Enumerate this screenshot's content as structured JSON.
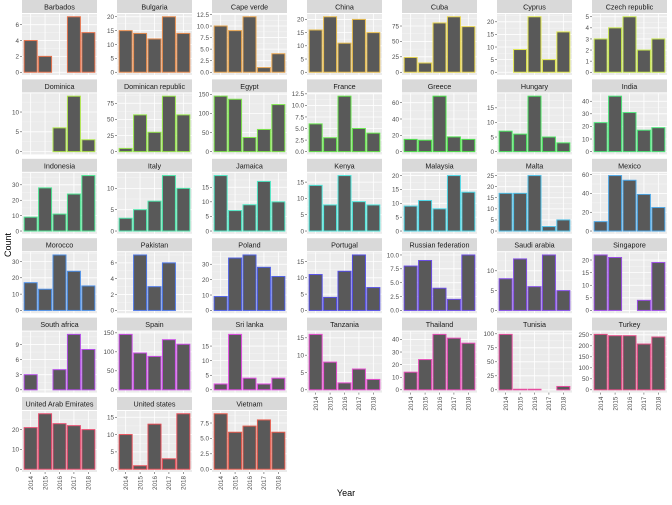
{
  "chart_data": {
    "type": "bar",
    "title": "",
    "xlabel": "Year",
    "ylabel": "Count",
    "categories": [
      "2014",
      "2015",
      "2016",
      "2017",
      "2018"
    ],
    "bar_fill": "#595959",
    "panel_bg": "#ebebeb",
    "strip_bg": "#d9d9d9",
    "facets": [
      {
        "name": "Barbados",
        "values": [
          4,
          2,
          0,
          7,
          5
        ],
        "ticks": [
          "0",
          "2",
          "4",
          "6"
        ]
      },
      {
        "name": "Bulgaria",
        "values": [
          15,
          14,
          12,
          20,
          14
        ],
        "ticks": [
          "0",
          "5",
          "10",
          "15",
          "20"
        ]
      },
      {
        "name": "Cape verde",
        "values": [
          10,
          9,
          12,
          1,
          4
        ],
        "ticks": [
          "0.0",
          "2.5",
          "5.0",
          "7.5",
          "10.0",
          "12.5"
        ]
      },
      {
        "name": "China",
        "values": [
          16,
          21,
          11,
          20,
          15
        ],
        "ticks": [
          "0",
          "5",
          "10",
          "15",
          "20"
        ]
      },
      {
        "name": "Cuba",
        "values": [
          24,
          15,
          80,
          90,
          74
        ],
        "ticks": [
          "0",
          "25",
          "50",
          "75"
        ]
      },
      {
        "name": "Cyprus",
        "values": [
          0,
          9,
          22,
          5,
          16
        ],
        "ticks": [
          "0",
          "5",
          "10",
          "15",
          "20"
        ]
      },
      {
        "name": "Czech republic",
        "values": [
          3,
          4,
          5,
          2,
          3
        ],
        "ticks": [
          "0",
          "1",
          "2",
          "3",
          "4",
          "5"
        ]
      },
      {
        "name": "Dominica",
        "values": [
          0,
          0,
          6,
          14,
          3
        ],
        "ticks": [
          "0",
          "5",
          "10"
        ]
      },
      {
        "name": "Dominican republic",
        "values": [
          5,
          57,
          30,
          86,
          57
        ],
        "ticks": [
          "0",
          "25",
          "50",
          "75"
        ]
      },
      {
        "name": "Egypt",
        "values": [
          145,
          137,
          37,
          58,
          123
        ],
        "ticks": [
          "0",
          "50",
          "100",
          "150"
        ]
      },
      {
        "name": "France",
        "values": [
          6,
          3,
          12,
          5,
          4
        ],
        "ticks": [
          "0.0",
          "2.5",
          "5.0",
          "7.5",
          "10.0",
          "12.5"
        ]
      },
      {
        "name": "Greece",
        "values": [
          15,
          14,
          68,
          18,
          15
        ],
        "ticks": [
          "0",
          "20",
          "40",
          "60"
        ]
      },
      {
        "name": "Hungary",
        "values": [
          7,
          6,
          19,
          5,
          3
        ],
        "ticks": [
          "0",
          "5",
          "10",
          "15"
        ]
      },
      {
        "name": "India",
        "values": [
          23,
          44,
          31,
          17,
          19
        ],
        "ticks": [
          "0",
          "10",
          "20",
          "30",
          "40"
        ]
      },
      {
        "name": "Indonesia",
        "values": [
          9,
          28,
          11,
          24,
          36
        ],
        "ticks": [
          "0",
          "10",
          "20",
          "30"
        ]
      },
      {
        "name": "Italy",
        "values": [
          3,
          5,
          7,
          13,
          10
        ],
        "ticks": [
          "0",
          "5",
          "10"
        ]
      },
      {
        "name": "Jamaica",
        "values": [
          19,
          7,
          9,
          17,
          10
        ],
        "ticks": [
          "0",
          "5",
          "10",
          "15"
        ]
      },
      {
        "name": "Kenya",
        "values": [
          14,
          8,
          17,
          9,
          8
        ],
        "ticks": [
          "0",
          "5",
          "10",
          "15"
        ]
      },
      {
        "name": "Malaysia",
        "values": [
          9,
          11,
          8,
          20,
          14
        ],
        "ticks": [
          "0",
          "5",
          "10",
          "15",
          "20"
        ]
      },
      {
        "name": "Malta",
        "values": [
          17,
          17,
          25,
          2,
          5
        ],
        "ticks": [
          "0",
          "5",
          "10",
          "15",
          "20",
          "25"
        ]
      },
      {
        "name": "Mexico",
        "values": [
          10,
          59,
          54,
          39,
          25
        ],
        "ticks": [
          "0",
          "20",
          "40",
          "60"
        ]
      },
      {
        "name": "Morocco",
        "values": [
          17,
          13,
          34,
          24,
          15
        ],
        "ticks": [
          "0",
          "10",
          "20",
          "30"
        ]
      },
      {
        "name": "Pakistan",
        "values": [
          0,
          7,
          3,
          6,
          0
        ],
        "ticks": [
          "0",
          "2",
          "4",
          "6"
        ]
      },
      {
        "name": "Poland",
        "values": [
          9,
          34,
          36,
          28,
          22
        ],
        "ticks": [
          "0",
          "10",
          "20",
          "30"
        ]
      },
      {
        "name": "Portugal",
        "values": [
          11,
          4,
          12,
          17,
          7
        ],
        "ticks": [
          "0",
          "5",
          "10",
          "15"
        ]
      },
      {
        "name": "Russian federation",
        "values": [
          8,
          9,
          4,
          2,
          10
        ],
        "ticks": [
          "0.0",
          "2.5",
          "5.0",
          "7.5",
          "10.0"
        ]
      },
      {
        "name": "Saudi arabia",
        "values": [
          8,
          13,
          6,
          14,
          5
        ],
        "ticks": [
          "0",
          "5",
          "10"
        ]
      },
      {
        "name": "Singapore",
        "values": [
          22,
          21,
          0,
          4,
          19
        ],
        "ticks": [
          "0",
          "5",
          "10",
          "15",
          "20"
        ]
      },
      {
        "name": "South africa",
        "values": [
          3,
          0,
          4,
          11,
          8
        ],
        "ticks": [
          "0",
          "3",
          "6",
          "9"
        ]
      },
      {
        "name": "Spain",
        "values": [
          146,
          97,
          88,
          132,
          120
        ],
        "ticks": [
          "0",
          "50",
          "100",
          "150"
        ]
      },
      {
        "name": "Sri lanka",
        "values": [
          2,
          19,
          4,
          2,
          4
        ],
        "ticks": [
          "0",
          "5",
          "10",
          "15"
        ]
      },
      {
        "name": "Tanzania",
        "values": [
          16,
          8,
          2,
          6,
          3
        ],
        "ticks": [
          "0",
          "5",
          "10",
          "15"
        ]
      },
      {
        "name": "Thailand",
        "values": [
          14,
          24,
          44,
          41,
          37
        ],
        "ticks": [
          "0",
          "10",
          "20",
          "30",
          "40"
        ]
      },
      {
        "name": "Tunisia",
        "values": [
          99,
          1,
          1,
          0,
          6
        ],
        "ticks": [
          "0",
          "25",
          "50",
          "75",
          "100"
        ]
      },
      {
        "name": "Turkey",
        "values": [
          252,
          246,
          246,
          208,
          240
        ],
        "ticks": [
          "0",
          "50",
          "100",
          "150",
          "200",
          "250"
        ]
      },
      {
        "name": "United Arab Emirates",
        "values": [
          21,
          28,
          23,
          22,
          20
        ],
        "ticks": [
          "0",
          "10",
          "20"
        ]
      },
      {
        "name": "United states",
        "values": [
          10,
          1,
          13,
          3,
          16
        ],
        "ticks": [
          "0",
          "5",
          "10",
          "15"
        ]
      },
      {
        "name": "Vietnam",
        "values": [
          9,
          6,
          7,
          8,
          6
        ],
        "ticks": [
          "0.0",
          "2.5",
          "5.0",
          "7.5"
        ]
      }
    ]
  }
}
